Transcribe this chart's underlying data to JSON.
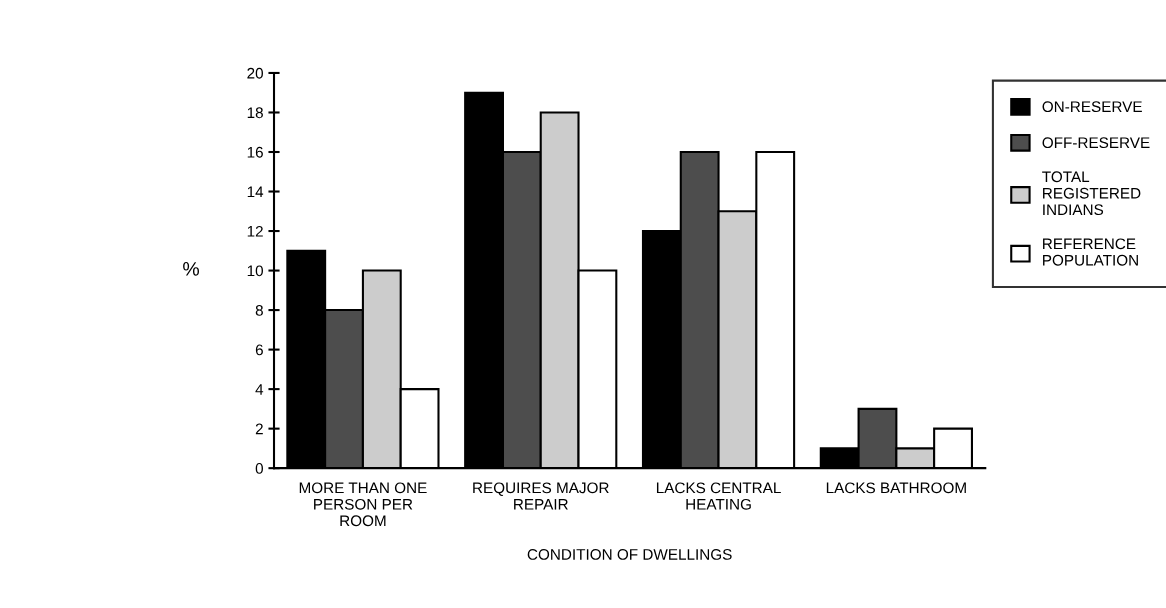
{
  "chart_data": {
    "type": "bar",
    "categories": [
      "MORE THAN ONE\nPERSON PER\nROOM",
      "REQUIRES MAJOR\nREPAIR",
      "LACKS CENTRAL\nHEATING",
      "LACKS BATHROOM"
    ],
    "series": [
      {
        "name": "ON-RESERVE",
        "color": "#000000",
        "values": [
          11,
          19,
          12,
          1
        ]
      },
      {
        "name": "OFF-RESERVE",
        "color": "#4d4d4d",
        "values": [
          8,
          16,
          16,
          3
        ]
      },
      {
        "name": "TOTAL\nREGISTERED\nINDIANS",
        "color": "#cccccc",
        "values": [
          10,
          18,
          13,
          1
        ]
      },
      {
        "name": "REFERENCE\nPOPULATION",
        "color": "#ffffff",
        "values": [
          4,
          10,
          16,
          2
        ]
      }
    ],
    "xlabel": "CONDITION OF DWELLINGS",
    "ylabel": "%",
    "ylim": [
      0,
      20
    ],
    "yticks": [
      0,
      2,
      4,
      6,
      8,
      10,
      12,
      14,
      16,
      18,
      20
    ],
    "grid": false,
    "legend": "top right"
  }
}
